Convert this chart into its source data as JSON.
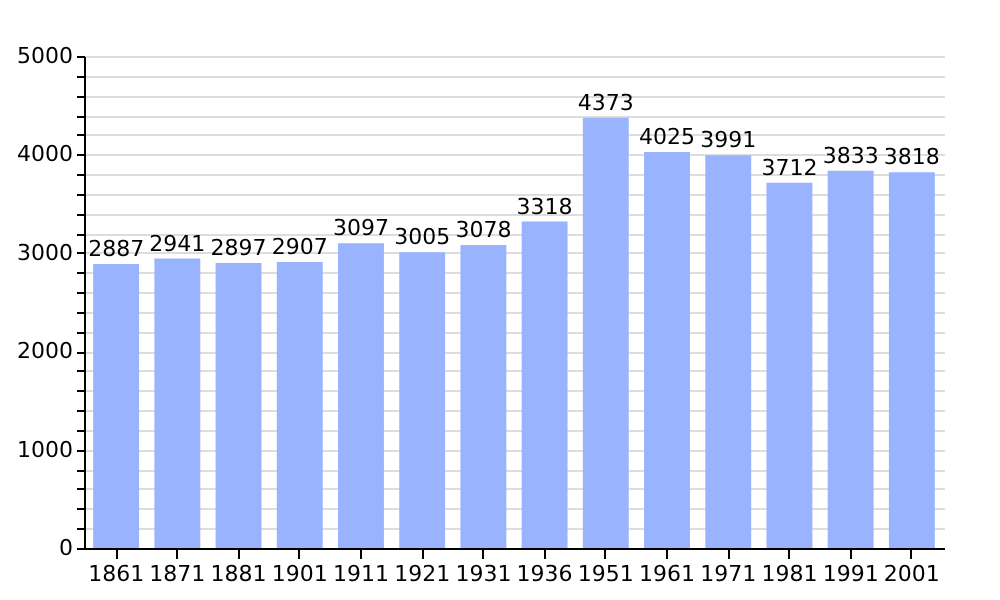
{
  "chart_data": {
    "type": "bar",
    "categories": [
      "1861",
      "1871",
      "1881",
      "1901",
      "1911",
      "1921",
      "1931",
      "1936",
      "1951",
      "1961",
      "1971",
      "1981",
      "1991",
      "2001"
    ],
    "values": [
      2887,
      2941,
      2897,
      2907,
      3097,
      3005,
      3078,
      3318,
      4373,
      4025,
      3991,
      3712,
      3833,
      3818
    ],
    "color": "#99b3ff",
    "ylim": [
      0,
      5000
    ],
    "yticks": [
      0,
      {
        "value": 200,
        "label": null
      },
      {
        "value": 400,
        "label": null
      },
      {
        "value": 600,
        "label": null
      },
      {
        "value": 800,
        "label": null
      },
      1000,
      {
        "value": 1200,
        "label": null
      },
      {
        "value": 1400,
        "label": null
      },
      {
        "value": 1600,
        "label": null
      },
      {
        "value": 1800,
        "label": null
      },
      2000,
      {
        "value": 2200,
        "label": null
      },
      {
        "value": 2400,
        "label": null
      },
      {
        "value": 2600,
        "label": null
      },
      {
        "value": 2800,
        "label": null
      },
      3000,
      {
        "value": 3200,
        "label": null
      },
      {
        "value": 3400,
        "label": null
      },
      {
        "value": 3600,
        "label": null
      },
      {
        "value": 3800,
        "label": null
      },
      4000,
      {
        "value": 4200,
        "label": null
      },
      {
        "value": 4400,
        "label": null
      },
      {
        "value": 4600,
        "label": null
      },
      {
        "value": 4800,
        "label": null
      },
      5000
    ],
    "grid": "y",
    "data_labels": true
  }
}
